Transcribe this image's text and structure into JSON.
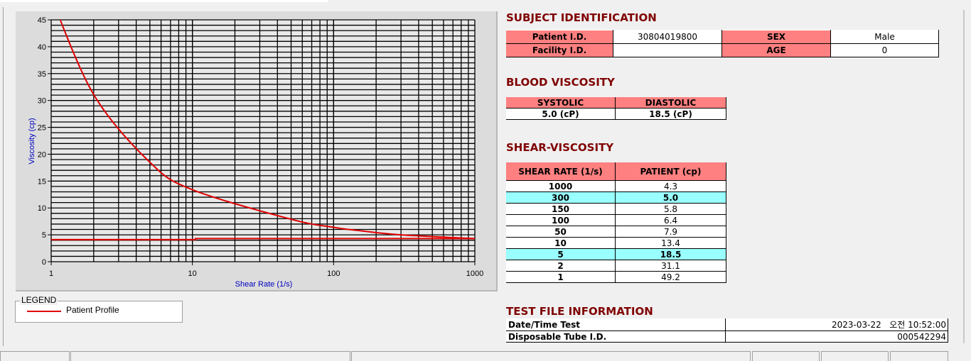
{
  "legend": {
    "title": "LEGEND",
    "items": [
      {
        "label": "Patient Profile",
        "color": "#e00000"
      }
    ]
  },
  "chart_data": {
    "type": "line",
    "xlabel": "Shear Rate (1/s)",
    "ylabel": "Viscosity (cp)",
    "xscale": "log",
    "xlim": [
      1,
      1000
    ],
    "ylim": [
      0,
      45
    ],
    "xticks": [
      "1",
      "10",
      "100",
      "1000"
    ],
    "yticks": [
      "0",
      "5",
      "10",
      "15",
      "20",
      "25",
      "30",
      "35",
      "40",
      "45"
    ],
    "grid": true,
    "label_color": "#0000c0",
    "series": [
      {
        "name": "Patient Profile",
        "color": "#e00000",
        "x": [
          1,
          2,
          5,
          10,
          50,
          100,
          150,
          300,
          1000
        ],
        "y": [
          49.2,
          31.1,
          18.5,
          13.4,
          7.9,
          6.4,
          5.8,
          5.0,
          4.3
        ]
      },
      {
        "color": "#e00000",
        "x": [
          1,
          10.5,
          10.5,
          1000
        ],
        "y": [
          4.1,
          4.1,
          4.3,
          4.3
        ]
      }
    ]
  },
  "subject": {
    "title": "SUBJECT IDENTIFICATION",
    "patient_id_label": "Patient I.D.",
    "patient_id": "30804019800",
    "sex_label": "SEX",
    "sex": "Male",
    "facility_id_label": "Facility I.D.",
    "facility_id": "",
    "age_label": "AGE",
    "age": "0"
  },
  "blood": {
    "title": "BLOOD VISCOSITY",
    "systolic_label": "SYSTOLIC",
    "diastolic_label": "DIASTOLIC",
    "systolic": "5.0 (cP)",
    "diastolic": "18.5 (cP)"
  },
  "shear": {
    "title": "SHEAR-VISCOSITY",
    "headers": [
      "SHEAR RATE (1/s)",
      "PATIENT (cp)"
    ],
    "highlight_color": "#99ffff",
    "rows": [
      {
        "rate": "1000",
        "value": "4.3",
        "highlight": false
      },
      {
        "rate": "300",
        "value": "5.0",
        "highlight": true
      },
      {
        "rate": "150",
        "value": "5.8",
        "highlight": false
      },
      {
        "rate": "100",
        "value": "6.4",
        "highlight": false
      },
      {
        "rate": "50",
        "value": "7.9",
        "highlight": false
      },
      {
        "rate": "10",
        "value": "13.4",
        "highlight": false
      },
      {
        "rate": "5",
        "value": "18.5",
        "highlight": true
      },
      {
        "rate": "2",
        "value": "31.1",
        "highlight": false
      },
      {
        "rate": "1",
        "value": "49.2",
        "highlight": false
      }
    ]
  },
  "testfile": {
    "title": "TEST FILE INFORMATION",
    "datetime_label": "Date/Time Test",
    "datetime": "2023-03-22   오전 10:52:00",
    "tube_label": "Disposable Tube I.D.",
    "tube": "000542294"
  },
  "colors": {
    "header_fill": "#ff8080",
    "section_title": "#800000"
  }
}
